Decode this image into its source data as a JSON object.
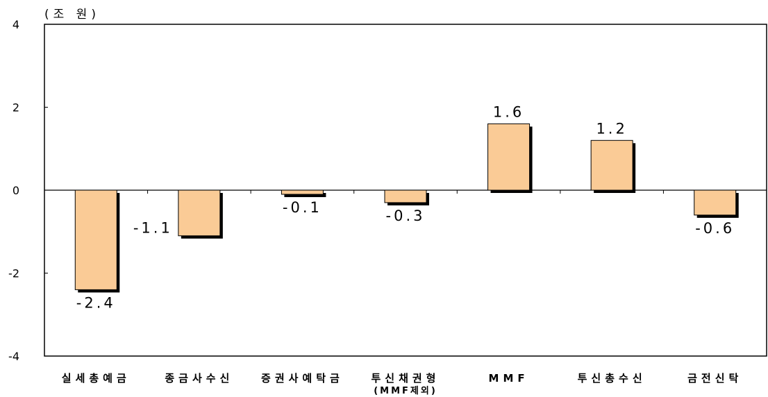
{
  "chart_data": {
    "type": "bar",
    "unit_label": "(조 원)",
    "categories": [
      [
        "실세총예금"
      ],
      [
        "종금사수신"
      ],
      [
        "증권사예탁금"
      ],
      [
        "투신채권형",
        "(MMF제외)"
      ],
      [
        "MMF"
      ],
      [
        "투신총수신"
      ],
      [
        "금전신탁"
      ]
    ],
    "values": [
      -2.4,
      -1.1,
      -0.1,
      -0.3,
      1.6,
      1.2,
      -0.6
    ],
    "data_labels": [
      "-2.4",
      "-1.1",
      "-0.1",
      "-0.3",
      "1.6",
      "1.2",
      "-0.6"
    ],
    "y_ticks": [
      "4",
      "2",
      "0",
      "-2",
      "-4"
    ],
    "ylim": [
      -4,
      4
    ],
    "grid": false,
    "bar_color": "#FACB96",
    "bar_shadow_color": "#000000"
  }
}
